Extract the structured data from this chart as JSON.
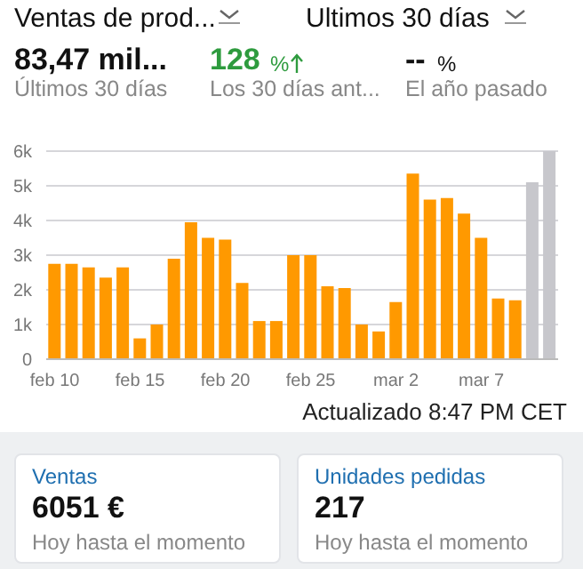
{
  "chart_data": [
    {
      "type": "bar",
      "title": "Ventas de prod...",
      "subtitle": "Ultimos 30 días",
      "annotations": [
        "83,47 mil...",
        "Últimos 30 días",
        "128",
        "%",
        "Los 30 días ant...",
        "--",
        "%",
        "El año pasado",
        "Actualizado 8:47 PM CET"
      ],
      "categories": [
        "feb 10",
        null,
        null,
        null,
        null,
        "feb 15",
        null,
        null,
        null,
        null,
        "feb 20",
        null,
        null,
        null,
        null,
        "feb 25",
        null,
        null,
        null,
        null,
        "mar 2",
        null,
        null,
        null,
        null,
        "mar 7",
        null,
        null,
        null,
        null
      ],
      "values": [
        2750,
        2750,
        2650,
        2350,
        2650,
        600,
        1000,
        2900,
        3950,
        3500,
        3450,
        2200,
        1100,
        1100,
        3000,
        3000,
        2100,
        2050,
        1000,
        800,
        1650,
        5350,
        4600,
        4650,
        4200,
        3500,
        1750,
        1700,
        5100,
        6000
      ],
      "colors": [
        "#ff9900",
        "#ff9900",
        "#ff9900",
        "#ff9900",
        "#ff9900",
        "#ff9900",
        "#ff9900",
        "#ff9900",
        "#ff9900",
        "#ff9900",
        "#ff9900",
        "#ff9900",
        "#ff9900",
        "#ff9900",
        "#ff9900",
        "#ff9900",
        "#ff9900",
        "#ff9900",
        "#ff9900",
        "#ff9900",
        "#ff9900",
        "#ff9900",
        "#ff9900",
        "#ff9900",
        "#ff9900",
        "#ff9900",
        "#ff9900",
        "#ff9900",
        "#c7c7cc",
        "#c7c7cc"
      ],
      "ylim": [
        0,
        6000
      ],
      "yticks": [
        0,
        {
          "value": 1000,
          "label": "1k"
        },
        {
          "value": 2000,
          "label": "2k"
        },
        {
          "value": 3000,
          "label": "3k"
        },
        {
          "value": 4000,
          "label": "4k"
        },
        {
          "value": 5000,
          "label": "5k"
        },
        {
          "value": 6000,
          "label": "6k"
        }
      ],
      "grid": "y"
    },
    {
      "type": "other",
      "title": "Ventas",
      "annotations": [
        "6051 €",
        "Hoy hasta el momento"
      ]
    },
    {
      "type": "other",
      "title": "Unidades pedidas",
      "annotations": [
        "217",
        "Hoy hasta el momento"
      ]
    }
  ]
}
